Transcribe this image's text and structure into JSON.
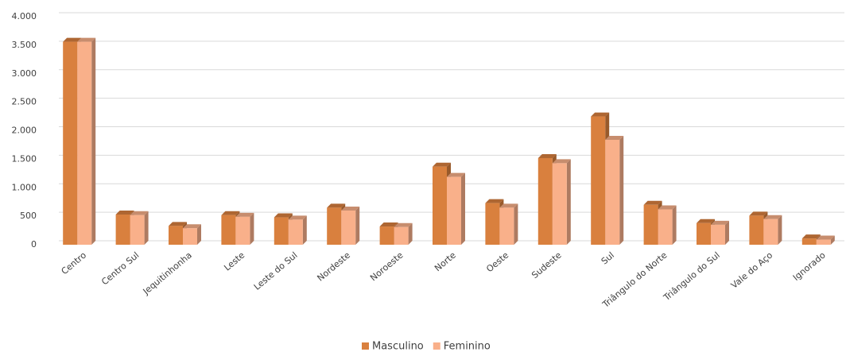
{
  "chart_data": {
    "type": "bar",
    "categories": [
      "Centro",
      "Centro Sul",
      "Jequitinhonha",
      "Leste",
      "Leste do Sul",
      "Nordeste",
      "Noroeste",
      "Norte",
      "Oeste",
      "Sudeste",
      "Sul",
      "Triângulo do Norte",
      "Triângulo do Sul",
      "Vale do Aço",
      "Ignorado"
    ],
    "series": [
      {
        "name": "Masculino",
        "color": "#d9803e",
        "values": [
          3560,
          530,
          330,
          520,
          480,
          650,
          320,
          1370,
          730,
          1520,
          2250,
          700,
          380,
          510,
          110
        ]
      },
      {
        "name": "Feminino",
        "color": "#f9b08a",
        "values": [
          3560,
          520,
          290,
          490,
          440,
          600,
          310,
          1190,
          650,
          1430,
          1840,
          620,
          350,
          450,
          90
        ]
      }
    ],
    "ylim": [
      0,
      4000
    ],
    "yticks": [
      0,
      500,
      {
        "value": 1000,
        "label": "1.000"
      },
      {
        "value": 1500,
        "label": "1.500"
      },
      {
        "value": 2000,
        "label": "2.000"
      },
      {
        "value": 2500,
        "label": "2.500"
      },
      {
        "value": 3000,
        "label": "3.000"
      },
      {
        "value": 3500,
        "label": "3.500"
      },
      {
        "value": 4000,
        "label": "4.000"
      }
    ],
    "grid": true,
    "legend": "bottom"
  }
}
